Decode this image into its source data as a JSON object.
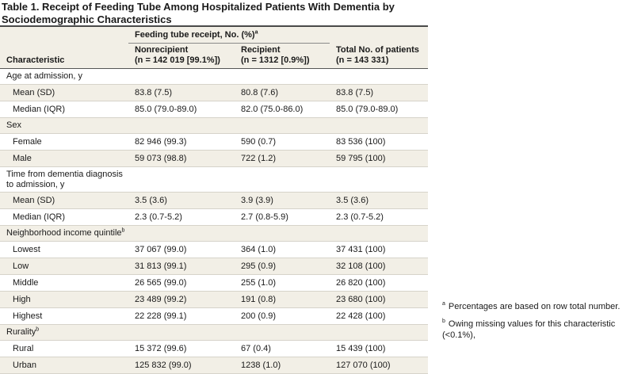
{
  "title": "Table 1. Receipt of Feeding Tube Among Hospitalized Patients With Dementia by Sociodemographic Characteristics",
  "header": {
    "span_label": "Feeding tube receipt, No. (%)",
    "span_sup": "a",
    "characteristic": "Characteristic",
    "nonrecipient": "Nonrecipient",
    "nonrecipient_n": "(n = 142 019 [99.1%])",
    "recipient": "Recipient",
    "recipient_n": "(n = 1312 [0.9%])",
    "total": "Total No. of patients",
    "total_n": "(n = 143 331)"
  },
  "sections": {
    "age": {
      "label": "Age at admission, y",
      "rows": [
        {
          "label": "Mean (SD)",
          "non": "83.8 (7.5)",
          "rec": "80.8 (7.6)",
          "tot": "83.8 (7.5)"
        },
        {
          "label": "Median (IQR)",
          "non": "85.0 (79.0-89.0)",
          "rec": "82.0 (75.0-86.0)",
          "tot": "85.0 (79.0-89.0)"
        }
      ]
    },
    "sex": {
      "label": "Sex",
      "rows": [
        {
          "label": "Female",
          "non": "82 946 (99.3)",
          "rec": "590 (0.7)",
          "tot": "83 536 (100)"
        },
        {
          "label": "Male",
          "non": "59 073 (98.8)",
          "rec": "722 (1.2)",
          "tot": "59 795 (100)"
        }
      ]
    },
    "time": {
      "label_line1": "Time from dementia diagnosis",
      "label_line2": "to admission, y",
      "rows": [
        {
          "label": "Mean (SD)",
          "non": "3.5 (3.6)",
          "rec": "3.9 (3.9)",
          "tot": "3.5 (3.6)"
        },
        {
          "label": "Median (IQR)",
          "non": "2.3 (0.7-5.2)",
          "rec": "2.7 (0.8-5.9)",
          "tot": "2.3 (0.7-5.2)"
        }
      ]
    },
    "income": {
      "label": "Neighborhood income quintile",
      "sup": "b",
      "rows": [
        {
          "label": "Lowest",
          "non": "37 067 (99.0)",
          "rec": "364 (1.0)",
          "tot": "37 431 (100)"
        },
        {
          "label": "Low",
          "non": "31 813 (99.1)",
          "rec": "295 (0.9)",
          "tot": "32 108 (100)"
        },
        {
          "label": "Middle",
          "non": "26 565 (99.0)",
          "rec": "255 (1.0)",
          "tot": "26 820 (100)"
        },
        {
          "label": "High",
          "non": "23 489 (99.2)",
          "rec": "191 (0.8)",
          "tot": "23 680 (100)"
        },
        {
          "label": "Highest",
          "non": "22 228 (99.1)",
          "rec": "200 (0.9)",
          "tot": "22 428 (100)"
        }
      ]
    },
    "rurality": {
      "label": "Rurality",
      "sup": "b",
      "rows": [
        {
          "label": "Rural",
          "non": "15 372 (99.6)",
          "rec": "67 (0.4)",
          "tot": "15 439 (100)"
        },
        {
          "label": "Urban",
          "non": "125 832 (99.0)",
          "rec": "1238 (1.0)",
          "tot": "127 070 (100)"
        }
      ]
    }
  },
  "footnotes": {
    "a_mark": "a",
    "a_text": "Percentages are based on row total number.",
    "b_mark": "b",
    "b_text": "Owing missing values for this characteristic (<0.1%),"
  }
}
